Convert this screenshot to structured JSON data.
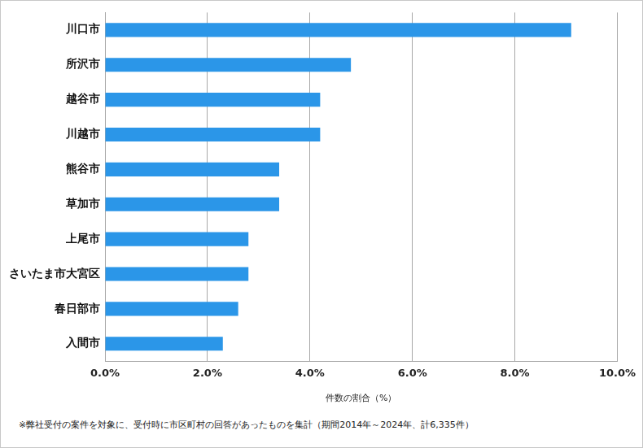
{
  "chart_data": {
    "type": "bar",
    "orientation": "horizontal",
    "categories": [
      "川口市",
      "所沢市",
      "越谷市",
      "川越市",
      "熊谷市",
      "草加市",
      "上尾市",
      "さいたま市大宮区",
      "春日部市",
      "入間市"
    ],
    "values": [
      9.1,
      4.8,
      4.2,
      4.2,
      3.4,
      3.4,
      2.8,
      2.8,
      2.6,
      2.3
    ],
    "color": "#2b96e8",
    "x_label": "件数の割合（%）",
    "xlim": [
      0,
      10
    ],
    "xticks": [
      {
        "value": 0,
        "label": "0.0%"
      },
      {
        "value": 2,
        "label": "2.0%"
      },
      {
        "value": 4,
        "label": "4.0%"
      },
      {
        "value": 6,
        "label": "6.0%"
      },
      {
        "value": 8,
        "label": "8.0%"
      },
      {
        "value": 10,
        "label": "10.0%"
      }
    ],
    "grid": true,
    "footnote": "※弊社受付の案件を対象に、受付時に市区町村の回答があったものを集計（期間2014年～2024年、計6,335件）"
  }
}
